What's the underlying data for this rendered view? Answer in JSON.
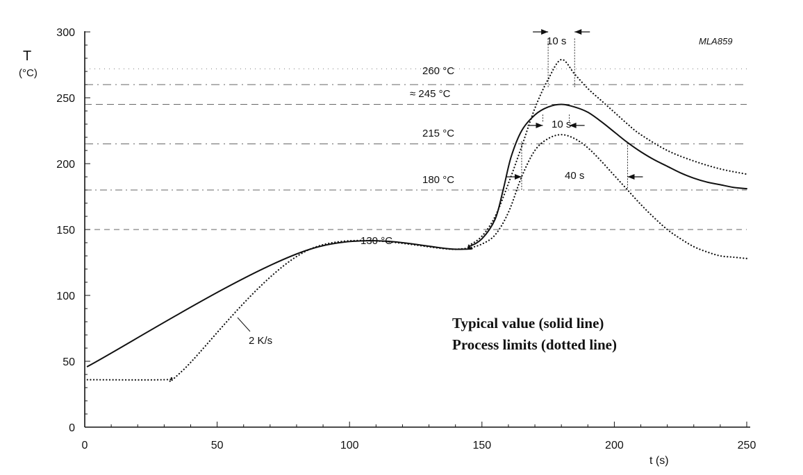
{
  "chart_data": {
    "type": "line",
    "code": "MLA859",
    "ylabel": "T",
    "yunit": "(°C)",
    "xlabel": "t (s)",
    "xlim": [
      0,
      250
    ],
    "ylim": [
      0,
      300
    ],
    "xticks": [
      0,
      50,
      100,
      150,
      200,
      250
    ],
    "yticks": [
      0,
      50,
      100,
      150,
      200,
      250,
      300
    ],
    "reference_levels": [
      {
        "label": "260 °C",
        "value": 260
      },
      {
        "label": "≈ 245 °C",
        "value": 245
      },
      {
        "label": "215 °C",
        "value": 215
      },
      {
        "label": "180 °C",
        "value": 180
      },
      {
        "label": "130 °C",
        "value": 130
      }
    ],
    "other_reference_lines": [
      150,
      272
    ],
    "ramp_label": "2 K/s",
    "duration_labels": [
      {
        "label": "10 s",
        "level": 300,
        "from": 175,
        "to": 185
      },
      {
        "label": "10 s",
        "level": 229,
        "from": 173,
        "to": 183
      },
      {
        "label": "40 s",
        "level": 190,
        "from": 165,
        "to": 205
      }
    ],
    "legend": [
      {
        "text": "Typical value (solid line)",
        "style": "solid"
      },
      {
        "text": "Process limits (dotted line)",
        "style": "dotted"
      }
    ],
    "series": [
      {
        "style": "solid",
        "x": [
          1,
          85,
          141,
          145,
          150,
          155,
          158,
          161,
          165,
          170,
          175,
          180,
          185,
          190,
          195,
          200,
          205,
          210,
          215,
          220,
          225,
          230,
          235,
          240,
          245,
          250
        ],
        "y": [
          46,
          135,
          135,
          137,
          143,
          158,
          180,
          205,
          225,
          237,
          243,
          245,
          243,
          239,
          232,
          224,
          216,
          209,
          203,
          198,
          193,
          189,
          186,
          184,
          182,
          181
        ]
      },
      {
        "style": "dotted",
        "x": [
          1,
          30,
          33,
          37,
          85,
          140,
          145,
          150,
          155,
          160,
          165,
          170,
          175,
          180,
          185,
          190,
          195,
          200,
          205,
          210,
          220,
          230,
          240,
          250
        ],
        "y": [
          36,
          36,
          38,
          43,
          135,
          135,
          138,
          145,
          160,
          185,
          213,
          242,
          264,
          279,
          268,
          257,
          248,
          239,
          230,
          222,
          210,
          202,
          196,
          192
        ]
      },
      {
        "style": "dotted",
        "x": [
          140,
          145,
          150,
          155,
          160,
          165,
          170,
          175,
          180,
          185,
          190,
          195,
          200,
          205,
          210,
          215,
          220,
          225,
          230,
          235,
          240,
          245,
          250
        ],
        "y": [
          135,
          136,
          139,
          146,
          163,
          190,
          210,
          219,
          222,
          219,
          212,
          202,
          191,
          180,
          169,
          159,
          150,
          143,
          137,
          133,
          130,
          129,
          128
        ]
      }
    ]
  }
}
